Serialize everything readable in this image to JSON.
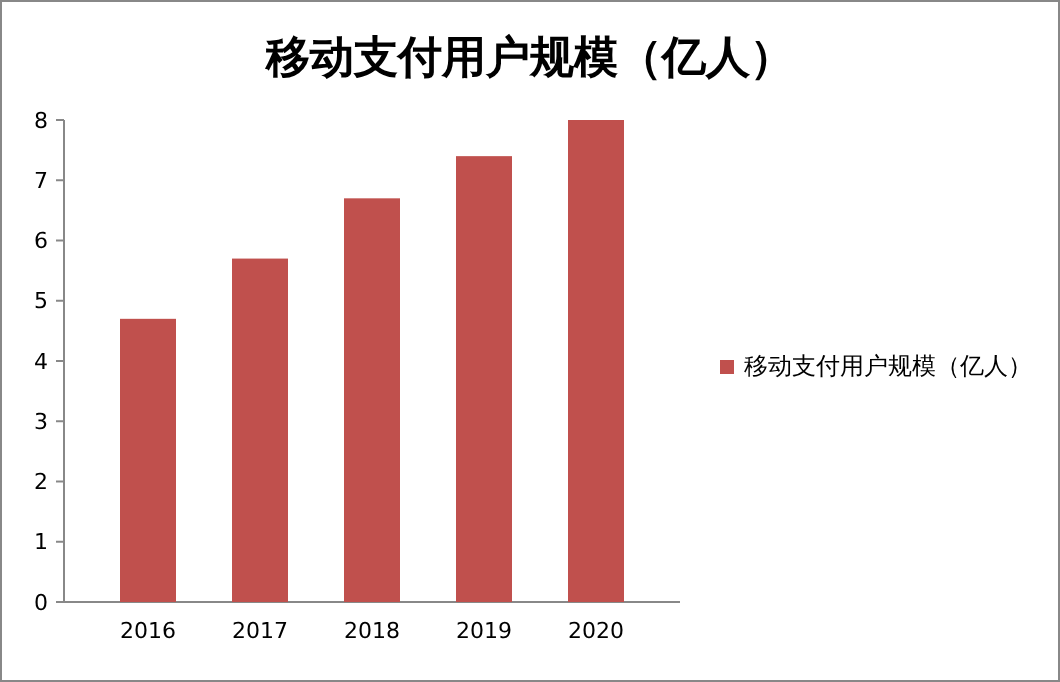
{
  "chart_data": {
    "type": "bar",
    "title": "移动支付用户规模（亿人）",
    "categories": [
      "2016",
      "2017",
      "2018",
      "2019",
      "2020"
    ],
    "series": [
      {
        "name": "移动支付用户规模（亿人）",
        "color": "#c0504d",
        "values": [
          4.7,
          5.7,
          6.7,
          7.4,
          8.0
        ]
      }
    ],
    "ylim": [
      0,
      8
    ],
    "yticks": [
      0,
      1,
      2,
      3,
      4,
      5,
      6,
      7,
      8
    ],
    "grid": false,
    "legend": "right"
  }
}
